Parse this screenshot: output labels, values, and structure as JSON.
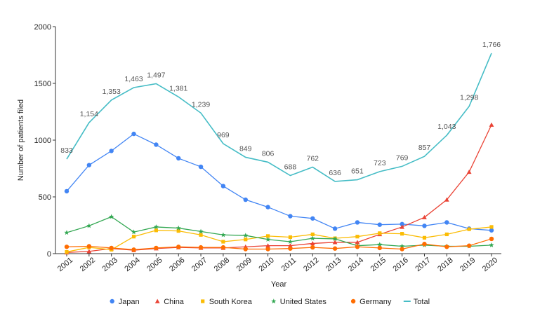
{
  "chart_data": {
    "type": "line",
    "title": "",
    "xlabel": "Year",
    "ylabel": "Number of patients filed",
    "ylim": [
      0,
      2000
    ],
    "yticks": [
      0,
      500,
      1000,
      1500,
      2000
    ],
    "categories": [
      "2001",
      "2002",
      "2003",
      "2004",
      "2005",
      "2006",
      "2007",
      "2008",
      "2009",
      "2010",
      "2011",
      "2012",
      "2013",
      "2014",
      "2015",
      "2016",
      "2017",
      "2018",
      "2019",
      "2020"
    ],
    "grid": false,
    "legend_position": "bottom",
    "series": [
      {
        "name": "Japan",
        "color": "#4285f4",
        "marker": "circle",
        "values": [
          550,
          780,
          905,
          1055,
          960,
          840,
          765,
          595,
          475,
          410,
          330,
          310,
          220,
          275,
          255,
          260,
          245,
          275,
          220,
          205
        ]
      },
      {
        "name": "China",
        "color": "#ea4335",
        "marker": "triangle",
        "values": [
          10,
          20,
          45,
          30,
          45,
          55,
          50,
          50,
          60,
          70,
          70,
          90,
          100,
          100,
          170,
          235,
          320,
          475,
          720,
          1135
        ]
      },
      {
        "name": "South Korea",
        "color": "#fbbc04",
        "marker": "square",
        "values": [
          15,
          55,
          35,
          150,
          205,
          200,
          165,
          105,
          125,
          155,
          145,
          170,
          135,
          150,
          180,
          175,
          140,
          170,
          215,
          235
        ]
      },
      {
        "name": "United States",
        "color": "#34a853",
        "marker": "star",
        "values": [
          185,
          245,
          325,
          190,
          235,
          225,
          195,
          165,
          160,
          125,
          105,
          135,
          130,
          70,
          80,
          65,
          75,
          65,
          65,
          75
        ]
      },
      {
        "name": "Germany",
        "color": "#ff6d01",
        "marker": "circle",
        "values": [
          60,
          65,
          50,
          35,
          50,
          60,
          55,
          55,
          40,
          40,
          45,
          55,
          45,
          60,
          50,
          40,
          85,
          60,
          70,
          130
        ]
      },
      {
        "name": "Total",
        "color": "#46bdc6",
        "marker": "line",
        "values": [
          833,
          1154,
          1353,
          1463,
          1497,
          1381,
          1239,
          969,
          849,
          806,
          688,
          762,
          636,
          651,
          723,
          769,
          857,
          1043,
          1298,
          1766
        ],
        "labels": [
          "833",
          "1,154",
          "1,353",
          "1,463",
          "1,497",
          "1,381",
          "1,239",
          "969",
          "849",
          "806",
          "688",
          "762",
          "636",
          "651",
          "723",
          "769",
          "857",
          "1,043",
          "1,298",
          "1,766"
        ]
      }
    ]
  }
}
